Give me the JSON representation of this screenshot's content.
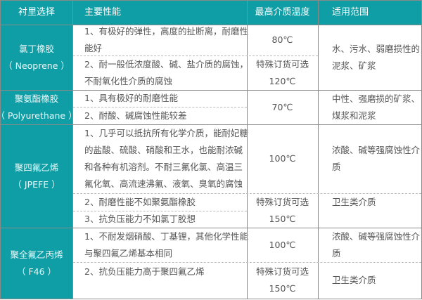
{
  "header": [
    "衬里选择",
    "主要性能",
    "最高介质温度",
    "适用范围"
  ],
  "colors": {
    "header_bg": "#0f9ea6",
    "text": "#555555"
  },
  "rows": [
    {
      "lining": [
        "氯丁橡胶",
        "（ Neoprene ）"
      ],
      "properties": [
        [
          "1、有极好的弹性，高度的扯断离，耐磨性",
          "能好"
        ],
        [
          "2、耐一般低浓度酸、碱、盐介质的腐蚀，",
          "不耐氧化性介质的腐蚀"
        ]
      ],
      "temperature": [
        [
          "80℃"
        ],
        [
          "特殊订货可选",
          "120℃"
        ]
      ],
      "application": [
        [
          "水、污水、弱磨损性的",
          "泥浆、矿浆"
        ]
      ]
    },
    {
      "lining": [
        "聚氨酯橡胶",
        "（ Polyurethane ）"
      ],
      "properties": [
        [
          "1、具有极好的耐磨性能"
        ],
        [
          "2、耐酸、碱腐蚀性能较差"
        ]
      ],
      "temperature": [
        [
          "70℃"
        ]
      ],
      "application": [
        [
          "中性、强磨损的矿浆、",
          "煤浆和泥浆"
        ]
      ]
    },
    {
      "lining": [
        "聚四氟乙烯",
        "（ JPEFE ）"
      ],
      "properties": [
        [
          "1、几乎可以抵抗所有化学介质，能耐妃糖",
          "的盐酸、硫酸、硝酸和王水，也能耐浓碱",
          "和各种有机溶剂。不耐三氟化氯、高温三",
          "氟化氧、高流速沸氟、液氧、臭氧的腐蚀"
        ],
        [
          "2、耐磨性能不如聚氨酯橡胶"
        ],
        [
          "3、抗负压能力不如氯丁胶想"
        ]
      ],
      "temperature": [
        [
          "100℃"
        ],
        [
          "特殊订货可选",
          "150℃"
        ]
      ],
      "application": [
        [
          "浓酸、碱等强腐蚀性介",
          "质"
        ],
        [
          "卫生类介质"
        ]
      ]
    },
    {
      "lining": [
        "聚全氟乙丙烯",
        "（ F46 ）"
      ],
      "properties": [
        [
          "1、不耐发烟硝酸、丁基锂，其他化学性能",
          "与聚四氟乙烯基本相同"
        ],
        [
          "2、抗负压能力高于聚四氟乙烯"
        ]
      ],
      "temperature": [
        [
          "100℃"
        ],
        [
          "特殊订货可选",
          "150℃"
        ]
      ],
      "application": [
        [
          "浓酸、碱等强腐蚀性介",
          "质"
        ],
        [
          "卫生类介质"
        ]
      ]
    }
  ]
}
